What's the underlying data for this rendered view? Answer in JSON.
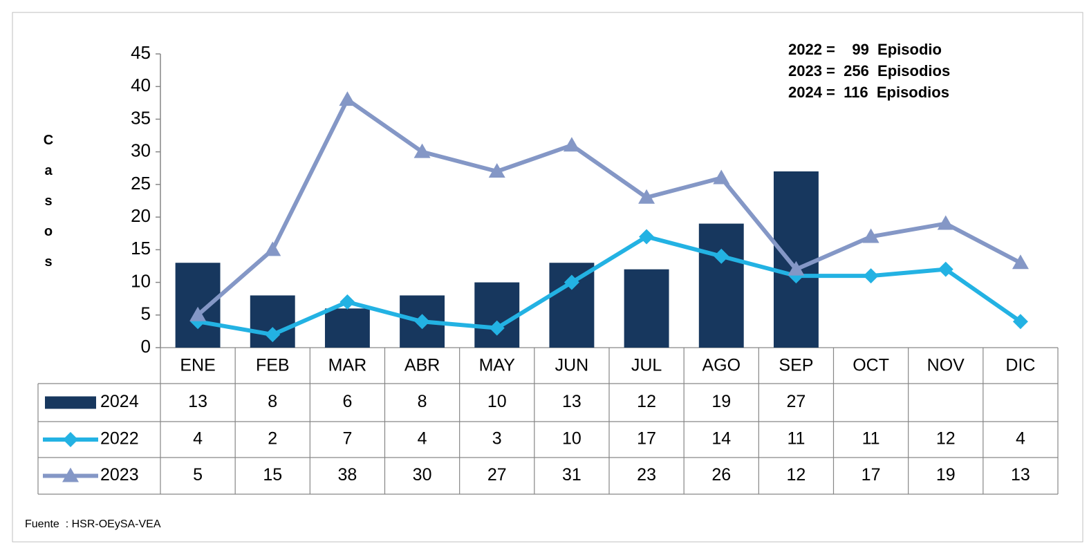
{
  "chart_data": {
    "type": "bar-line",
    "y_label": "Casos",
    "annotations": [
      "2022 =    99  Episodio",
      "2023 =  256  Episodios",
      "2024 =  116  Episodios"
    ],
    "source": "Fuente  : HSR-OEySA-VEA",
    "categories": [
      "ENE",
      "FEB",
      "MAR",
      "ABR",
      "MAY",
      "JUN",
      "JUL",
      "AGO",
      "SEP",
      "OCT",
      "NOV",
      "DIC"
    ],
    "series": [
      {
        "name": "2024",
        "type": "bar",
        "color": "#17375e",
        "values": [
          13,
          8,
          6,
          8,
          10,
          13,
          12,
          19,
          27,
          null,
          null,
          null
        ]
      },
      {
        "name": "2022",
        "type": "line",
        "marker": "diamond",
        "color": "#23b2e3",
        "values": [
          4,
          2,
          7,
          4,
          3,
          10,
          17,
          14,
          11,
          11,
          12,
          4
        ]
      },
      {
        "name": "2023",
        "type": "line",
        "marker": "triangle",
        "color": "#8497c6",
        "values": [
          5,
          15,
          38,
          30,
          27,
          31,
          23,
          26,
          12,
          17,
          19,
          13
        ]
      }
    ],
    "ylim": [
      0,
      45
    ],
    "yticks": [
      0,
      5,
      10,
      15,
      20,
      25,
      30,
      35,
      40,
      45
    ]
  }
}
